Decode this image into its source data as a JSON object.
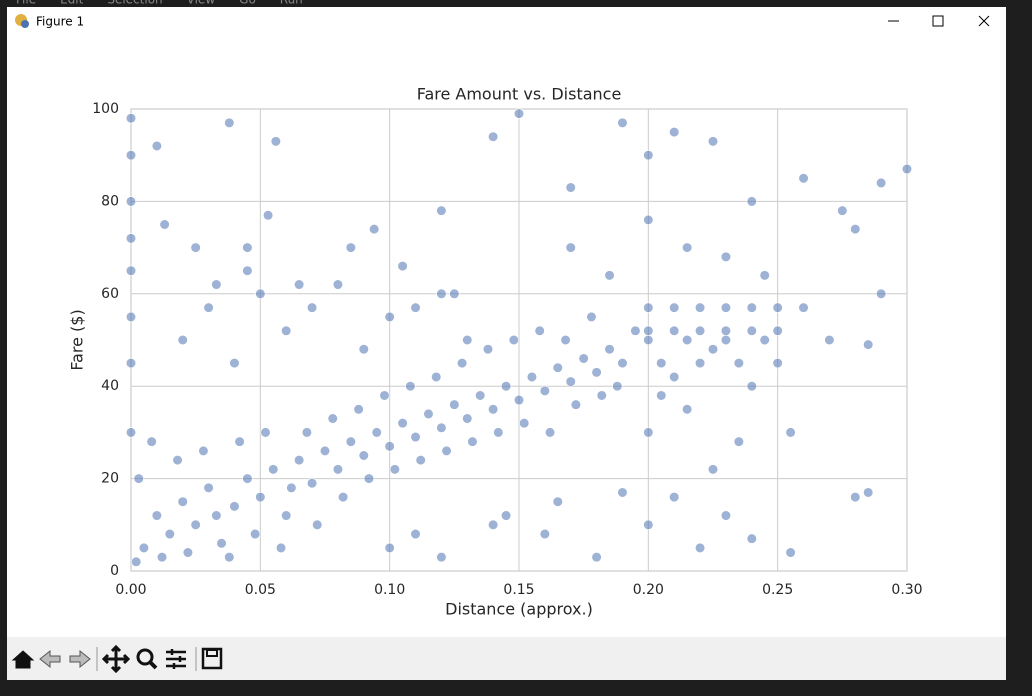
{
  "window": {
    "title": "Figure 1",
    "menu": [
      "File",
      "Edit",
      "Selection",
      "View",
      "Go",
      "Run"
    ]
  },
  "chart_data": {
    "type": "scatter",
    "title": "Fare Amount vs. Distance",
    "x_label": "Distance (approx.)",
    "y_label": "Fare ($)",
    "color": "#4c72b0",
    "grid": true,
    "xlim": [
      0,
      0.3
    ],
    "ylim": [
      0,
      100
    ],
    "xticks": [
      {
        "value": 0,
        "label": "0.00"
      },
      0.05,
      {
        "value": 0.1,
        "label": "0.10"
      },
      0.15,
      {
        "value": 0.2,
        "label": "0.20"
      },
      0.25,
      {
        "value": 0.3,
        "label": "0.30"
      }
    ],
    "yticks": [
      0,
      20,
      40,
      60,
      80,
      100
    ],
    "x": [
      0.005,
      0.01,
      0.015,
      0.02,
      0.025,
      0.03,
      0.035,
      0.04,
      0.045,
      0.05,
      0.055,
      0.06,
      0.065,
      0.07,
      0.075,
      0.08,
      0.085,
      0.09,
      0.095,
      0.1,
      0.105,
      0.11,
      0.115,
      0.12,
      0.125,
      0.13,
      0.135,
      0.14,
      0.145,
      0.15,
      0.155,
      0.16,
      0.165,
      0.17,
      0.175,
      0.18,
      0.185,
      0.19,
      0.002,
      0.003,
      0.008,
      0.012,
      0.018,
      0.022,
      0.028,
      0.033,
      0.038,
      0.042,
      0.048,
      0.052,
      0.058,
      0.062,
      0.068,
      0.072,
      0.078,
      0.082,
      0.088,
      0.092,
      0.098,
      0.102,
      0.108,
      0.112,
      0.118,
      0.122,
      0.128,
      0.132,
      0.138,
      0.142,
      0.148,
      0.152,
      0.158,
      0.162,
      0.168,
      0.172,
      0.178,
      0.182,
      0.188,
      0.195,
      0.2,
      0.21,
      0.22,
      0.23,
      0.24,
      0.25,
      0.2,
      0.21,
      0.22,
      0.23,
      0.24,
      0.25,
      0.2,
      0.215,
      0.23,
      0.245,
      0.205,
      0.22,
      0.235,
      0.25,
      0.21,
      0.225,
      0.24,
      0.205,
      0,
      0,
      0,
      0,
      0,
      0,
      0,
      0,
      0.038,
      0.056,
      0.01,
      0.053,
      0.094,
      0.12,
      0.14,
      0.15,
      0.17,
      0.19,
      0.2,
      0.21,
      0.225,
      0.24,
      0.26,
      0.275,
      0.29,
      0.3,
      0.28,
      0.29,
      0.17,
      0.185,
      0.2,
      0.215,
      0.23,
      0.245,
      0.26,
      0.27,
      0.285,
      0.1,
      0.12,
      0.14,
      0.16,
      0.18,
      0.2,
      0.21,
      0.22,
      0.23,
      0.24,
      0.255,
      0.28,
      0.285,
      0.19,
      0.165,
      0.145,
      0.11,
      0.02,
      0.03,
      0.04,
      0.05,
      0.06,
      0.07,
      0.08,
      0.09,
      0.1,
      0.11,
      0.12,
      0.13,
      0.025,
      0.045,
      0.065,
      0.085,
      0.105,
      0.125,
      0.013,
      0.033,
      0.045,
      0.255,
      0.235,
      0.225,
      0.2,
      0.215
    ],
    "values": [
      5,
      12,
      8,
      15,
      10,
      18,
      6,
      14,
      20,
      16,
      22,
      12,
      24,
      19,
      26,
      22,
      28,
      25,
      30,
      27,
      32,
      29,
      34,
      31,
      36,
      33,
      38,
      35,
      40,
      37,
      42,
      39,
      44,
      41,
      46,
      43,
      48,
      45,
      2,
      20,
      28,
      3,
      24,
      4,
      26,
      12,
      3,
      28,
      8,
      30,
      5,
      18,
      30,
      10,
      33,
      16,
      35,
      20,
      38,
      22,
      40,
      24,
      42,
      26,
      45,
      28,
      48,
      30,
      50,
      32,
      52,
      30,
      50,
      36,
      55,
      38,
      40,
      52,
      57,
      57,
      57,
      57,
      57,
      57,
      52,
      52,
      52,
      52,
      52,
      52,
      50,
      50,
      50,
      50,
      45,
      45,
      45,
      45,
      42,
      48,
      40,
      38,
      30,
      45,
      55,
      65,
      80,
      90,
      98,
      72,
      97,
      93,
      92,
      77,
      74,
      78,
      94,
      99,
      83,
      97,
      90,
      95,
      93,
      80,
      85,
      78,
      84,
      87,
      74,
      60,
      70,
      64,
      76,
      70,
      68,
      64,
      57,
      50,
      49,
      5,
      3,
      10,
      8,
      3,
      10,
      16,
      5,
      12,
      7,
      4,
      16,
      17,
      17,
      15,
      12,
      8,
      50,
      57,
      45,
      60,
      52,
      57,
      62,
      48,
      55,
      57,
      60,
      50,
      70,
      65,
      62,
      70,
      66,
      60,
      75,
      62,
      70,
      30,
      28,
      22,
      30,
      35
    ]
  }
}
